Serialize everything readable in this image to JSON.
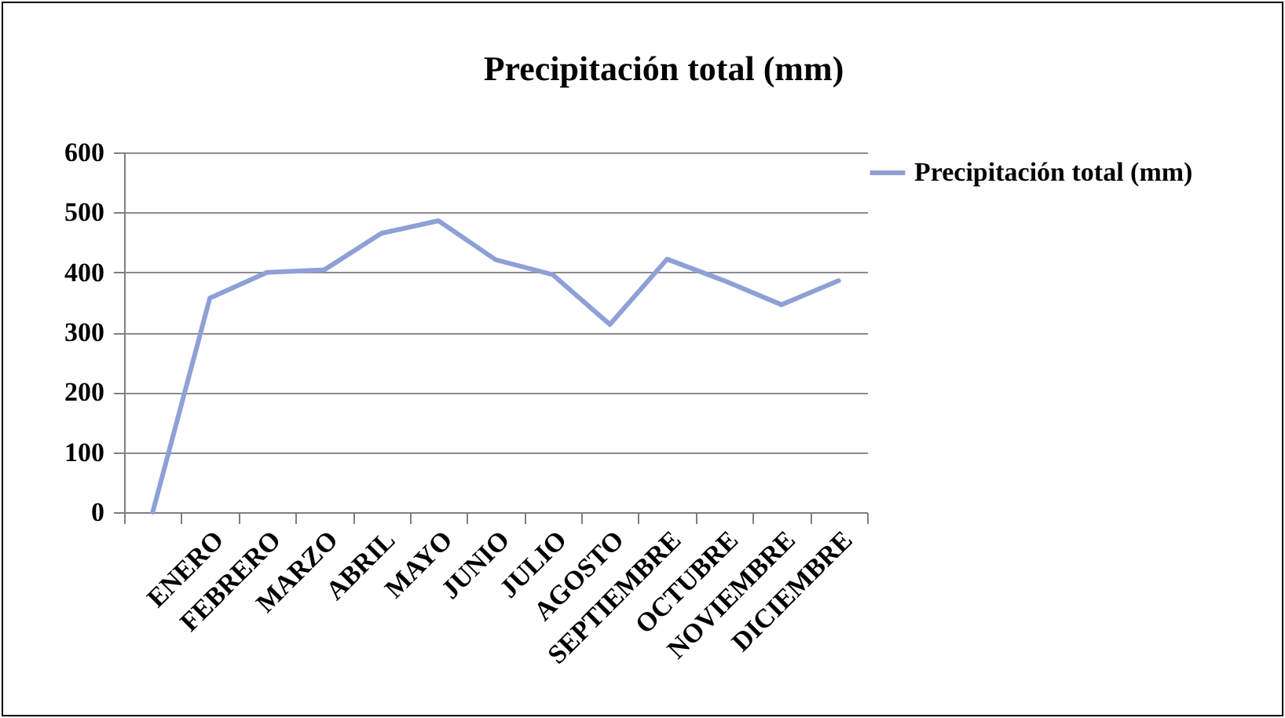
{
  "chart_data": {
    "type": "line",
    "title": "Precipitación total (mm)",
    "categories": [
      null,
      "ENERO",
      "FEBRERO",
      "MARZO",
      "ABRIL",
      "MAYO",
      "JUNIO",
      "JULIO",
      "AGOSTO",
      "SEPTIEMBRE",
      "OCTUBRE",
      "NOVIEMBRE",
      "DICIEMBRE"
    ],
    "series": [
      {
        "name": "Precipitación total (mm)",
        "color": "#8ea0d6",
        "values": [
          0,
          357,
          400,
          404,
          465,
          486,
          421,
          396,
          313,
          422,
          386,
          346,
          386
        ]
      }
    ],
    "ylim": [
      0,
      600
    ],
    "yticks": [
      0,
      100,
      200,
      300,
      400,
      500,
      600
    ],
    "grid": "y",
    "legend": "right",
    "marker": "none",
    "line_style": "solid"
  }
}
